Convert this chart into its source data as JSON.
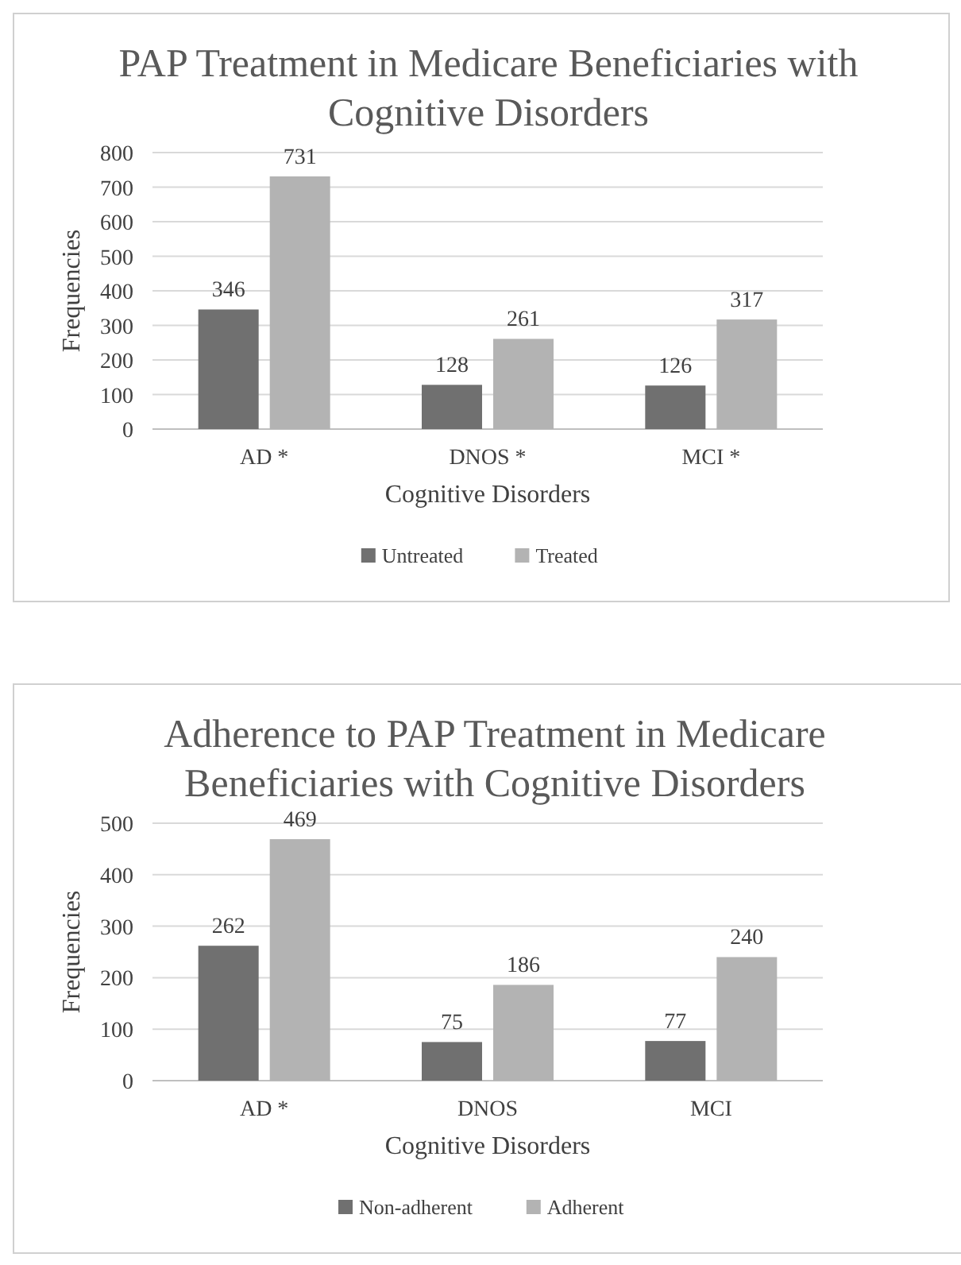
{
  "chart_data": [
    {
      "type": "bar",
      "title": "PAP Treatment in Medicare Beneficiaries with Cognitive Disorders",
      "xlabel": "Cognitive Disorders",
      "ylabel": "Frequencies",
      "categories": [
        "AD *",
        "DNOS *",
        "MCI *"
      ],
      "series": [
        {
          "name": "Untreated",
          "color": "#707070",
          "values": [
            346,
            128,
            126
          ]
        },
        {
          "name": "Treated",
          "color": "#b3b3b3",
          "values": [
            731,
            261,
            317
          ]
        }
      ],
      "ylim": [
        0,
        800
      ],
      "yticks": [
        0,
        100,
        200,
        300,
        400,
        500,
        600,
        700,
        800
      ],
      "grid": "y",
      "legend": "bottom",
      "data_labels": true
    },
    {
      "type": "bar",
      "title": "Adherence to PAP Treatment in Medicare Beneficiaries with Cognitive Disorders",
      "xlabel": "Cognitive Disorders",
      "ylabel": "Frequencies",
      "categories": [
        "AD *",
        "DNOS",
        "MCI"
      ],
      "series": [
        {
          "name": "Non-adherent",
          "color": "#707070",
          "values": [
            262,
            75,
            77
          ]
        },
        {
          "name": "Adherent",
          "color": "#b3b3b3",
          "values": [
            469,
            186,
            240
          ]
        }
      ],
      "ylim": [
        0,
        500
      ],
      "yticks": [
        0,
        100,
        200,
        300,
        400,
        500
      ],
      "grid": "y",
      "legend": "bottom",
      "data_labels": true
    }
  ]
}
